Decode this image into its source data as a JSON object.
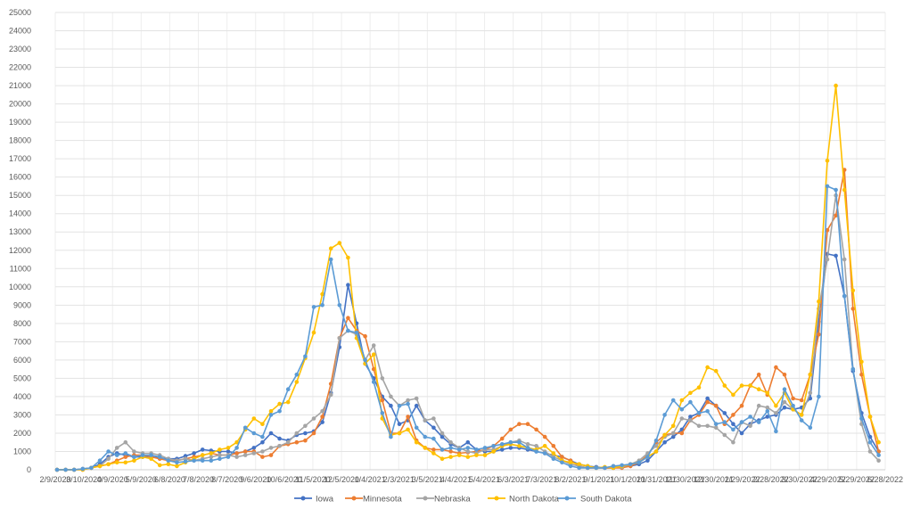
{
  "chart_data": {
    "type": "line",
    "title": "",
    "xlabel": "",
    "ylabel": "",
    "ylim": [
      0,
      25000
    ],
    "ytick_step": 1000,
    "xtick_labels": [
      "2/9/2020",
      "3/10/2020",
      "4/9/2020",
      "5/9/2020",
      "6/8/2020",
      "7/8/2020",
      "8/7/2020",
      "9/6/2020",
      "10/6/2020",
      "11/5/2020",
      "12/5/2020",
      "1/4/2021",
      "2/3/2021",
      "3/5/2021",
      "4/4/2021",
      "5/4/2021",
      "6/3/2021",
      "7/3/2021",
      "8/2/2021",
      "9/1/2021",
      "10/1/2021",
      "10/31/2021",
      "11/30/2021",
      "12/30/2021",
      "1/29/2022",
      "2/28/2022",
      "3/30/2022",
      "4/29/2022",
      "5/29/2022",
      "6/28/2022"
    ],
    "grid": true,
    "legend_position": "bottom",
    "n_points": 97,
    "series": [
      {
        "name": "Iowa",
        "color": "#4472c4",
        "values": [
          0,
          0,
          0,
          50,
          100,
          300,
          700,
          900,
          800,
          700,
          700,
          700,
          650,
          600,
          600,
          750,
          900,
          1100,
          1050,
          1000,
          1000,
          900,
          1000,
          1200,
          1500,
          2000,
          1700,
          1600,
          1900,
          2000,
          2100,
          2600,
          4200,
          6700,
          10100,
          8000,
          5800,
          5000,
          4000,
          3500,
          2500,
          2700,
          3500,
          2700,
          2300,
          1800,
          1400,
          1200,
          1500,
          1100,
          1000,
          1000,
          1100,
          1200,
          1200,
          1100,
          1000,
          900,
          800,
          700,
          500,
          300,
          200,
          150,
          100,
          100,
          150,
          200,
          300,
          500,
          1000,
          1500,
          1800,
          2200,
          2900,
          3100,
          3900,
          3500,
          3100,
          2500,
          2000,
          2500,
          2700,
          2900,
          3000,
          3400,
          3300,
          3400,
          3900,
          8100,
          11800,
          11700,
          9500,
          5400,
          3100,
          1800,
          1000
        ]
      },
      {
        "name": "Minnesota",
        "color": "#ed7d31",
        "values": [
          0,
          0,
          0,
          0,
          100,
          200,
          300,
          500,
          700,
          800,
          800,
          700,
          600,
          500,
          500,
          600,
          700,
          800,
          900,
          800,
          800,
          900,
          1000,
          1000,
          700,
          800,
          1300,
          1400,
          1500,
          1600,
          2000,
          2900,
          4700,
          7200,
          8300,
          7600,
          7300,
          5500,
          3800,
          2000,
          2000,
          2900,
          1600,
          1200,
          1100,
          1100,
          1000,
          900,
          950,
          1000,
          1100,
          1300,
          1700,
          2200,
          2500,
          2500,
          2200,
          1800,
          1300,
          700,
          500,
          200,
          100,
          100,
          100,
          100,
          100,
          200,
          400,
          800,
          1500,
          1900,
          2000,
          2000,
          2700,
          3000,
          3700,
          3500,
          2500,
          3000,
          3500,
          4600,
          5200,
          4100,
          5600,
          5200,
          3900,
          3800,
          5200,
          7400,
          13100,
          13900,
          16400,
          8800,
          5200,
          2900,
          1000
        ]
      },
      {
        "name": "Nebraska",
        "color": "#a5a5a5",
        "values": [
          0,
          0,
          0,
          50,
          100,
          200,
          600,
          1200,
          1500,
          1000,
          900,
          900,
          800,
          600,
          500,
          600,
          500,
          600,
          700,
          800,
          800,
          700,
          800,
          900,
          1000,
          1200,
          1300,
          1500,
          2000,
          2400,
          2800,
          3200,
          4100,
          7200,
          7600,
          7400,
          6000,
          6800,
          5000,
          4000,
          3500,
          3800,
          3900,
          2700,
          2800,
          2000,
          1500,
          1200,
          1000,
          900,
          1100,
          1100,
          1300,
          1500,
          1600,
          1400,
          1300,
          1000,
          700,
          500,
          300,
          200,
          100,
          100,
          100,
          200,
          150,
          300,
          500,
          900,
          1300,
          1800,
          2000,
          2800,
          2700,
          2400,
          2400,
          2300,
          1900,
          1500,
          2600,
          2400,
          3500,
          3400,
          3100,
          3700,
          3300,
          3000,
          4200,
          8800,
          11500,
          15000,
          11500,
          5500,
          2500,
          1000,
          500
        ]
      },
      {
        "name": "North Dakota",
        "color": "#ffc000",
        "values": [
          0,
          0,
          0,
          0,
          100,
          200,
          300,
          400,
          400,
          500,
          700,
          600,
          250,
          300,
          200,
          400,
          600,
          800,
          900,
          1100,
          1200,
          1500,
          2200,
          2800,
          2500,
          3200,
          3600,
          3700,
          4800,
          6100,
          7500,
          9600,
          12100,
          12400,
          11600,
          7200,
          5800,
          6300,
          2800,
          1900,
          2000,
          2200,
          1500,
          1200,
          900,
          600,
          700,
          800,
          700,
          800,
          800,
          1000,
          1300,
          1400,
          1300,
          1200,
          1100,
          1300,
          900,
          500,
          400,
          300,
          200,
          100,
          150,
          100,
          200,
          300,
          400,
          700,
          1000,
          1900,
          2400,
          3800,
          4200,
          4500,
          5600,
          5400,
          4600,
          4100,
          4600,
          4600,
          4400,
          4200,
          3500,
          4200,
          3300,
          3000,
          5200,
          9200,
          16900,
          21000,
          15300,
          9800,
          5900,
          2900,
          1500
        ]
      },
      {
        "name": "South Dakota",
        "color": "#5b9bd5",
        "values": [
          0,
          0,
          0,
          50,
          100,
          500,
          1000,
          800,
          900,
          700,
          800,
          800,
          700,
          500,
          400,
          450,
          500,
          500,
          500,
          600,
          700,
          1200,
          2300,
          2000,
          1800,
          3000,
          3200,
          4400,
          5200,
          6200,
          8900,
          9000,
          11500,
          9000,
          7600,
          7500,
          6000,
          4800,
          3100,
          1800,
          3500,
          3600,
          2300,
          1800,
          1700,
          1100,
          1200,
          1100,
          1200,
          1100,
          1200,
          1300,
          1400,
          1500,
          1500,
          1200,
          1000,
          900,
          600,
          400,
          200,
          100,
          100,
          100,
          100,
          200,
          250,
          300,
          400,
          700,
          1600,
          3000,
          3800,
          3300,
          3700,
          3100,
          3200,
          2500,
          2600,
          2200,
          2600,
          2900,
          2600,
          3200,
          2100,
          4400,
          3500,
          2700,
          2300,
          4000,
          15500,
          15300,
          9500,
          5500,
          2800,
          1500,
          800
        ]
      }
    ]
  }
}
